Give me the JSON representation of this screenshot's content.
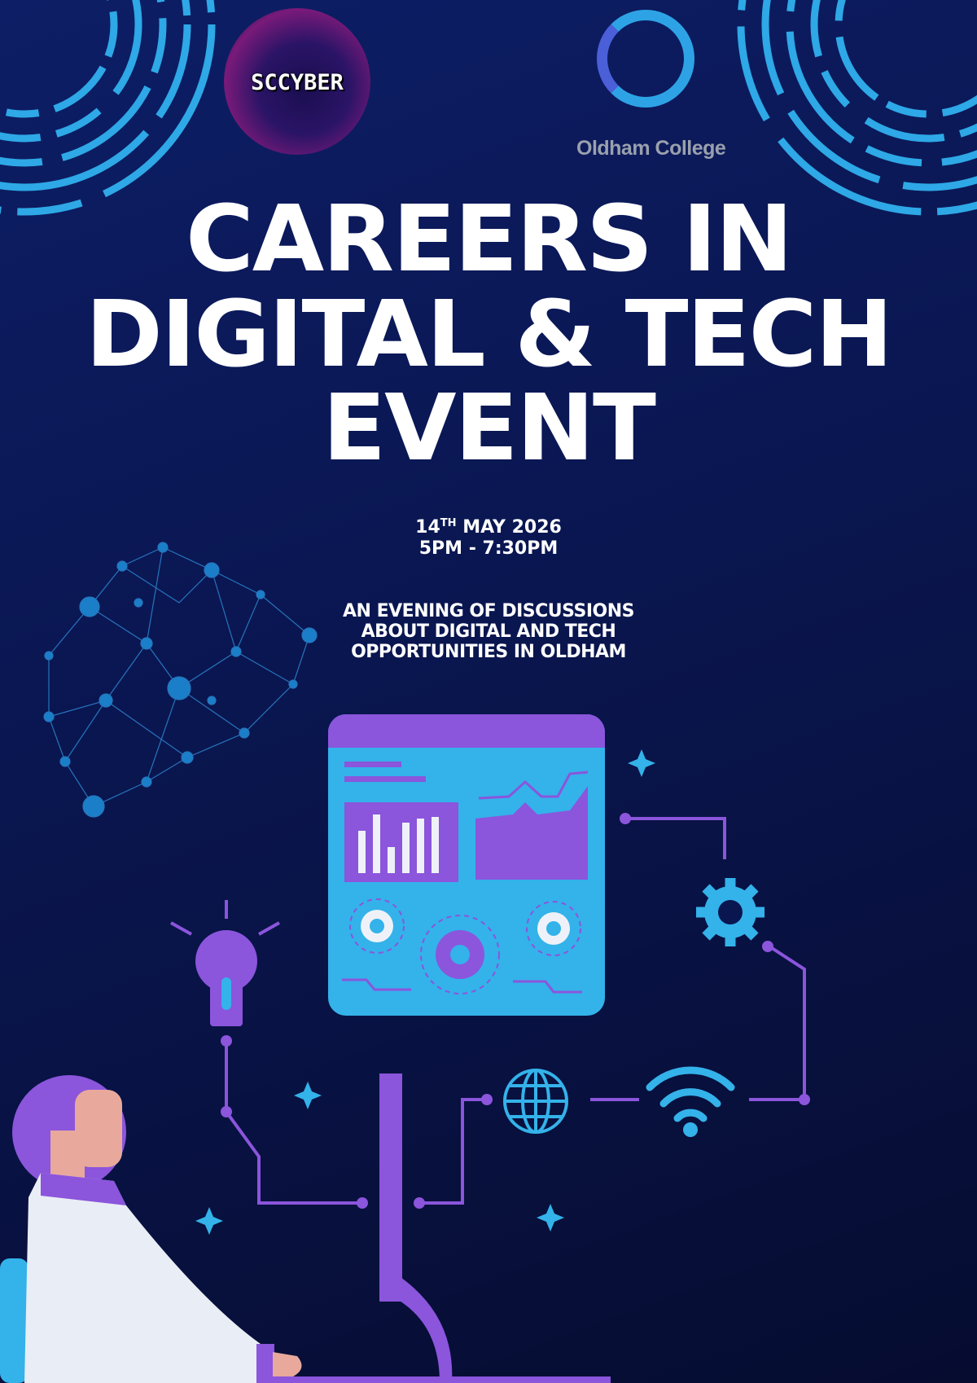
{
  "logos": {
    "left": "SCCYBER",
    "right": "Oldham College"
  },
  "title": {
    "line1": "CAREERS IN",
    "line2": "DIGITAL & TECH",
    "line3": "EVENT"
  },
  "event": {
    "date_day": "14",
    "date_suffix": "TH",
    "date_rest": " MAY 2026",
    "time": "5PM - 7:30PM"
  },
  "description": {
    "line1": "AN EVENING OF DISCUSSIONS",
    "line2": "ABOUT DIGITAL AND TECH",
    "line3": "OPPORTUNITIES IN OLDHAM"
  },
  "colors": {
    "background": "#0a1650",
    "accent_blue": "#2ea8e6",
    "accent_purple": "#8b55dc",
    "text": "#ffffff"
  },
  "icons": [
    "brain-network-icon",
    "dashboard-icon",
    "gear-icon",
    "lightbulb-icon",
    "globe-icon",
    "wifi-icon",
    "sparkle-icon",
    "person-at-desk-illustration"
  ]
}
